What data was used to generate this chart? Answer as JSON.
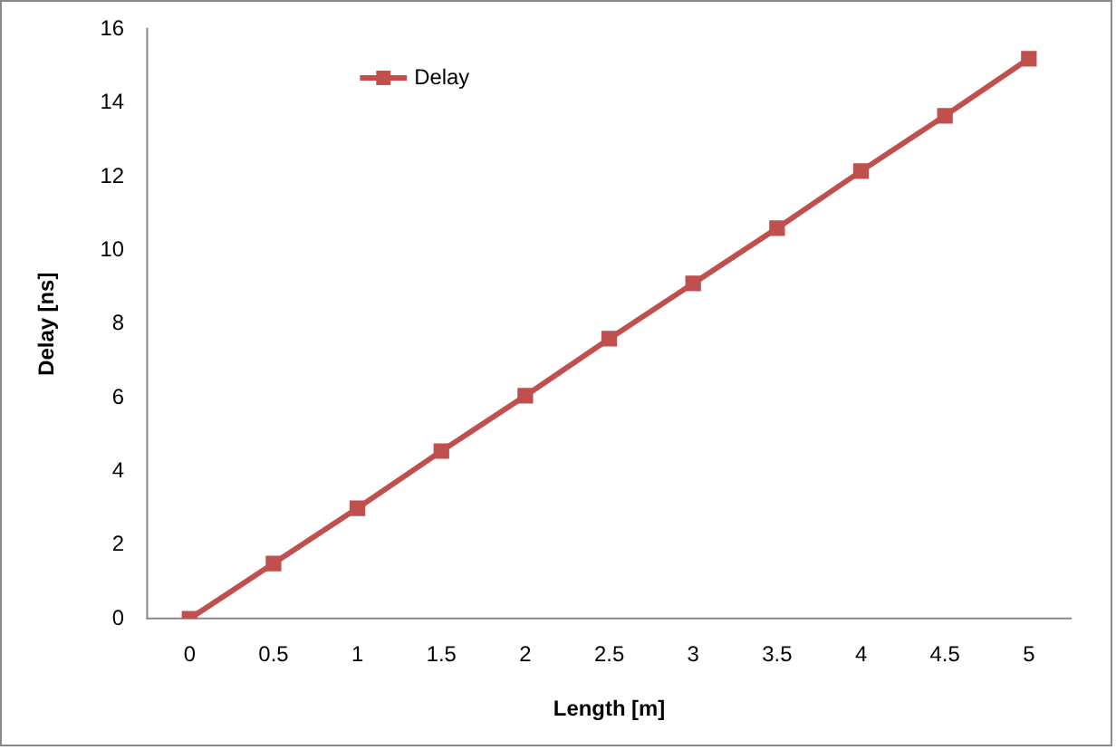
{
  "chart_data": {
    "type": "line",
    "xlabel": "Length [m]",
    "ylabel": "Delay [ns]",
    "categories": [
      "0",
      "0.5",
      "1",
      "1.5",
      "2",
      "2.5",
      "3",
      "3.5",
      "4",
      "4.5",
      "5"
    ],
    "series": [
      {
        "name": "Delay",
        "color": "#c0504d",
        "values": [
          0,
          1.5,
          3,
          4.55,
          6.05,
          7.6,
          9.1,
          10.6,
          12.15,
          13.65,
          15.2
        ]
      }
    ],
    "ylim": [
      0,
      16
    ],
    "yticks": [
      0,
      2,
      4,
      6,
      8,
      10,
      12,
      14,
      16
    ],
    "grid": false,
    "legend": "top left",
    "marker": "square",
    "line_style": "solid"
  }
}
